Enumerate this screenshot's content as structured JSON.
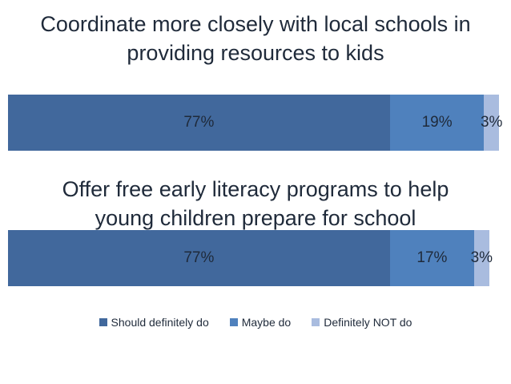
{
  "chart_data": {
    "type": "bar",
    "orientation": "horizontal",
    "stacked": true,
    "percent_stacked": true,
    "categories": [
      "Coordinate more closely with local schools in providing resources to kids",
      "Offer free early literacy programs to help young children prepare for school"
    ],
    "title_lines": [
      [
        "Coordinate more closely with local schools in",
        "providing resources to kids"
      ],
      [
        "Offer free early literacy programs to help",
        "young children prepare for school"
      ]
    ],
    "series": [
      {
        "name": "Should definitely do",
        "values": [
          77,
          77
        ],
        "labels": [
          "77%",
          "77%"
        ],
        "color": "#41689c"
      },
      {
        "name": "Maybe do",
        "values": [
          19,
          17
        ],
        "labels": [
          "19%",
          "17%"
        ],
        "color": "#4f81bd"
      },
      {
        "name": "Definitely NOT do",
        "values": [
          3,
          3
        ],
        "labels": [
          "3%",
          "3%"
        ],
        "color": "#a9bcdf"
      }
    ],
    "xlim": [
      0,
      99
    ],
    "legend_position": "bottom",
    "grid": false
  }
}
